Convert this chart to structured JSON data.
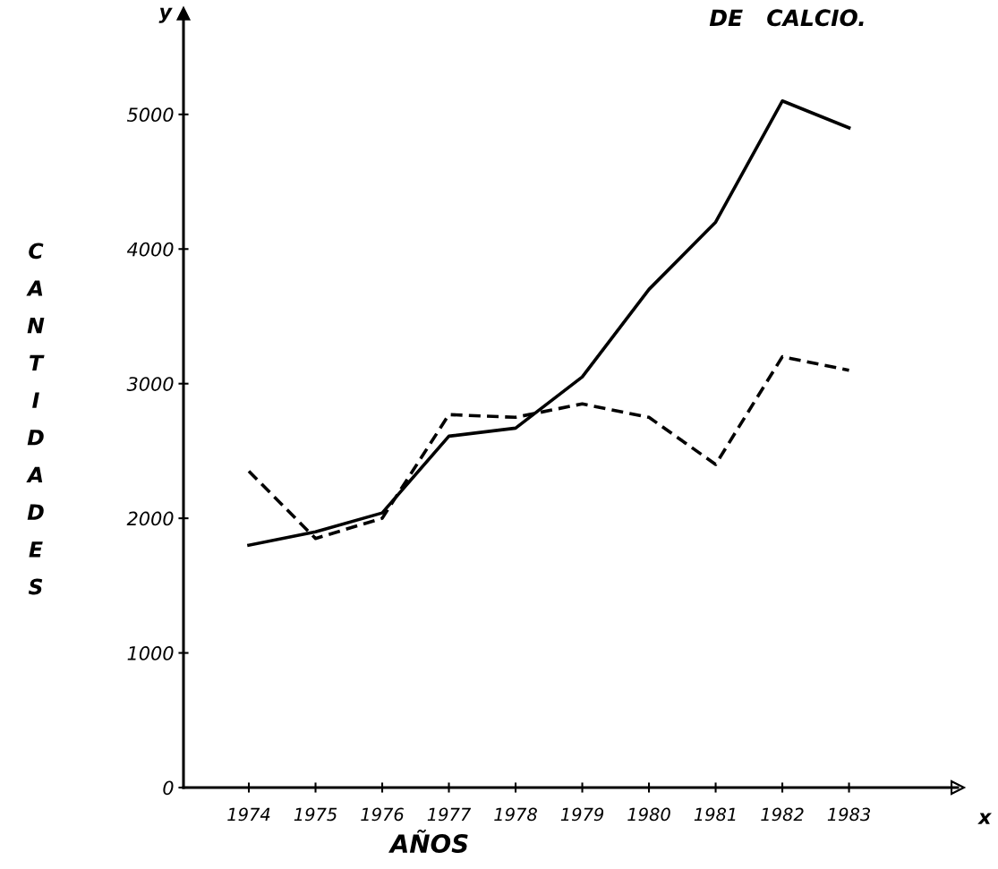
{
  "chart_data": {
    "type": "line",
    "title": "DE   CALCIO.",
    "xlabel": "AÑOS",
    "ylabel": "CANTIDADES",
    "annotations": [
      "y",
      "x"
    ],
    "categories": [
      "1974",
      "1975",
      "1976",
      "1977",
      "1978",
      "1979",
      "1980",
      "1981",
      "1982",
      "1983"
    ],
    "series": [
      {
        "color": "#000000",
        "line_style": "solid",
        "values": [
          1800,
          1900,
          2040,
          2610,
          2670,
          3050,
          3700,
          4200,
          5100,
          4900
        ]
      },
      {
        "color": "#000000",
        "line_style": "dashed",
        "values": [
          2350,
          1850,
          2000,
          2770,
          2750,
          2850,
          2750,
          2400,
          3200,
          3100
        ]
      }
    ],
    "ylim": [
      0,
      5750
    ],
    "yticks": [
      0,
      1000,
      2000,
      3000,
      4000,
      5000
    ],
    "grid": false,
    "marker": "none"
  }
}
